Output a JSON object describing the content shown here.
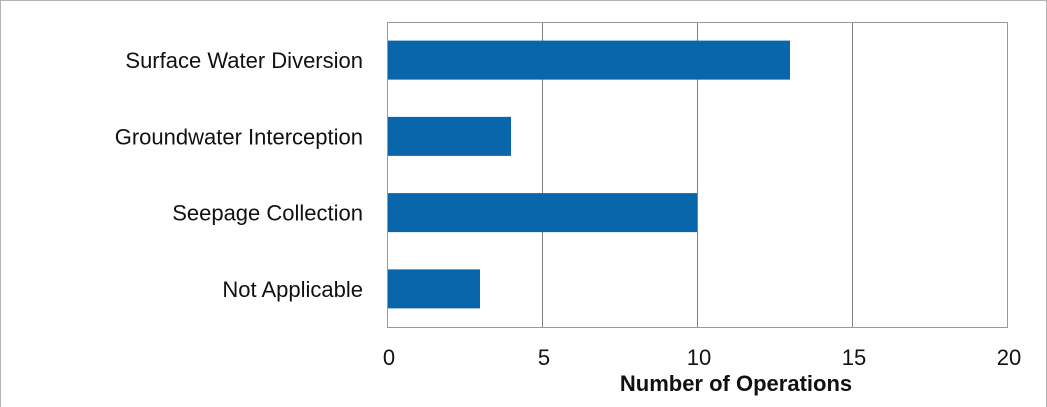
{
  "chart_data": {
    "type": "bar",
    "orientation": "horizontal",
    "categories": [
      "Surface Water Diversion",
      "Groundwater Interception",
      "Seepage Collection",
      "Not Applicable"
    ],
    "values": [
      13,
      4,
      10,
      3
    ],
    "title": "",
    "xlabel": "Number of Operations",
    "ylabel": "",
    "xlim": [
      0,
      20
    ],
    "xticks": [
      0,
      5,
      10,
      15,
      20
    ],
    "grid": "vertical",
    "legend": "none",
    "colors": {
      "bar": "#0a66aa",
      "gridline": "#808080",
      "frame": "#999999",
      "outer_border": "#b3b3b3",
      "text": "#111111"
    }
  }
}
